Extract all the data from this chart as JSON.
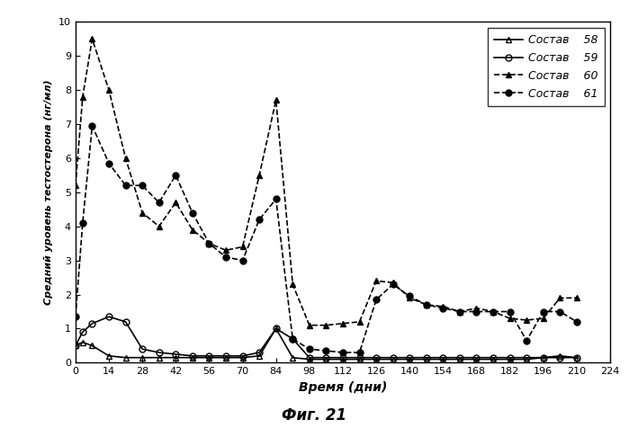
{
  "series": {
    "58": {
      "x": [
        0,
        3,
        7,
        14,
        21,
        28,
        35,
        42,
        49,
        56,
        63,
        70,
        77,
        84,
        91,
        98,
        105,
        112,
        119,
        126,
        133,
        140,
        147,
        154,
        161,
        168,
        175,
        182,
        189,
        196,
        203,
        210
      ],
      "y": [
        0.5,
        0.6,
        0.5,
        0.2,
        0.15,
        0.15,
        0.15,
        0.15,
        0.15,
        0.15,
        0.15,
        0.15,
        0.2,
        1.0,
        0.15,
        0.1,
        0.1,
        0.1,
        0.1,
        0.1,
        0.1,
        0.1,
        0.1,
        0.1,
        0.1,
        0.1,
        0.1,
        0.1,
        0.1,
        0.15,
        0.2,
        0.15
      ],
      "marker": "^",
      "linestyle": "-",
      "fillstyle": "none"
    },
    "59": {
      "x": [
        0,
        3,
        7,
        14,
        21,
        28,
        35,
        42,
        49,
        56,
        63,
        70,
        77,
        84,
        91,
        98,
        105,
        112,
        119,
        126,
        133,
        140,
        147,
        154,
        161,
        168,
        175,
        182,
        189,
        196,
        203,
        210
      ],
      "y": [
        0.5,
        0.9,
        1.15,
        1.35,
        1.2,
        0.4,
        0.3,
        0.25,
        0.2,
        0.2,
        0.2,
        0.2,
        0.3,
        1.0,
        0.7,
        0.15,
        0.15,
        0.15,
        0.15,
        0.15,
        0.15,
        0.15,
        0.15,
        0.15,
        0.15,
        0.15,
        0.15,
        0.15,
        0.15,
        0.15,
        0.15,
        0.15
      ],
      "marker": "o",
      "linestyle": "-",
      "fillstyle": "none"
    },
    "60": {
      "x": [
        0,
        3,
        7,
        14,
        21,
        28,
        35,
        42,
        49,
        56,
        63,
        70,
        77,
        84,
        91,
        98,
        105,
        112,
        119,
        126,
        133,
        140,
        147,
        154,
        161,
        168,
        175,
        182,
        189,
        196,
        203,
        210
      ],
      "y": [
        5.2,
        7.8,
        9.5,
        8.0,
        6.0,
        4.4,
        4.0,
        4.7,
        3.9,
        3.5,
        3.3,
        3.4,
        5.5,
        7.7,
        2.3,
        1.1,
        1.1,
        1.15,
        1.2,
        2.4,
        2.35,
        1.9,
        1.7,
        1.65,
        1.5,
        1.6,
        1.5,
        1.3,
        1.25,
        1.3,
        1.9,
        1.9
      ],
      "marker": "^",
      "linestyle": "--",
      "fillstyle": "full"
    },
    "61": {
      "x": [
        0,
        3,
        7,
        14,
        21,
        28,
        35,
        42,
        49,
        56,
        63,
        70,
        77,
        84,
        91,
        98,
        105,
        112,
        119,
        126,
        133,
        140,
        147,
        154,
        161,
        168,
        175,
        182,
        189,
        196,
        203,
        210
      ],
      "y": [
        1.35,
        4.1,
        6.95,
        5.85,
        5.2,
        5.2,
        4.7,
        5.5,
        4.4,
        3.5,
        3.1,
        3.0,
        4.2,
        4.8,
        0.7,
        0.4,
        0.35,
        0.3,
        0.3,
        1.85,
        2.3,
        1.95,
        1.7,
        1.6,
        1.5,
        1.5,
        1.5,
        1.5,
        0.65,
        1.5,
        1.5,
        1.2
      ],
      "marker": "o",
      "linestyle": "--",
      "fillstyle": "full"
    }
  },
  "legend_labels": [
    {
      "key": "58",
      "text_italic": "Состав",
      "text_bold": "58"
    },
    {
      "key": "59",
      "text_italic": "Состав",
      "text_bold": "59"
    },
    {
      "key": "60",
      "text_italic": "Состав",
      "text_bold": "60"
    },
    {
      "key": "61",
      "text_italic": "Состав",
      "text_bold": "61"
    }
  ],
  "xlabel": "Время (дни)",
  "ylabel": "Средний уровень тестостерона (нг/мл)",
  "fig_title": "Фиг. 21",
  "xlim": [
    0,
    224
  ],
  "ylim": [
    0,
    10
  ],
  "xticks": [
    0,
    14,
    28,
    42,
    56,
    70,
    84,
    98,
    112,
    126,
    140,
    154,
    168,
    182,
    196,
    210,
    224
  ],
  "yticks": [
    0,
    1,
    2,
    3,
    4,
    5,
    6,
    7,
    8,
    9,
    10
  ],
  "color": "#000000",
  "background_color": "#ffffff",
  "markersize": 5,
  "linewidth": 1.2
}
